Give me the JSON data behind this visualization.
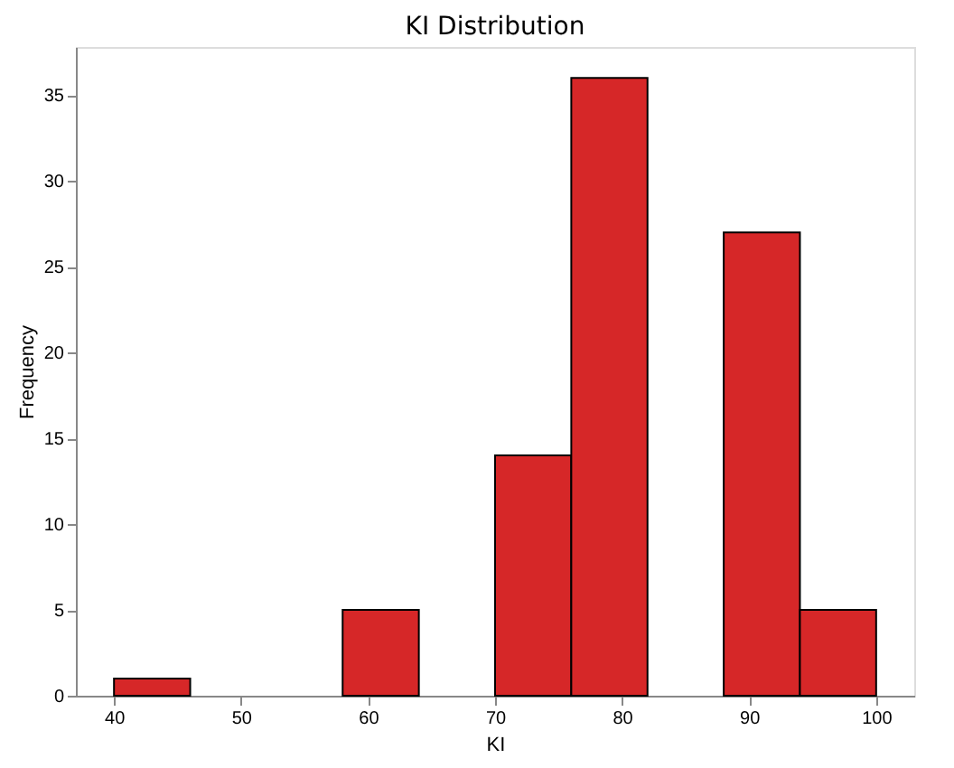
{
  "chart_data": {
    "type": "histogram",
    "title": "KI Distribution",
    "xlabel": "KI",
    "ylabel": "Frequency",
    "bins": [
      40,
      46,
      52,
      58,
      64,
      70,
      76,
      82,
      88,
      94,
      100
    ],
    "values": [
      1,
      0,
      0,
      5,
      0,
      14,
      36,
      0,
      27,
      5
    ],
    "color": "#d62728",
    "xlim": [
      37,
      103
    ],
    "xticks": [
      40,
      50,
      60,
      70,
      80,
      90,
      100
    ],
    "ylim": [
      0,
      37.8
    ],
    "yticks": [
      0,
      5,
      10,
      15,
      20,
      25,
      30,
      35
    ],
    "grid": false
  }
}
